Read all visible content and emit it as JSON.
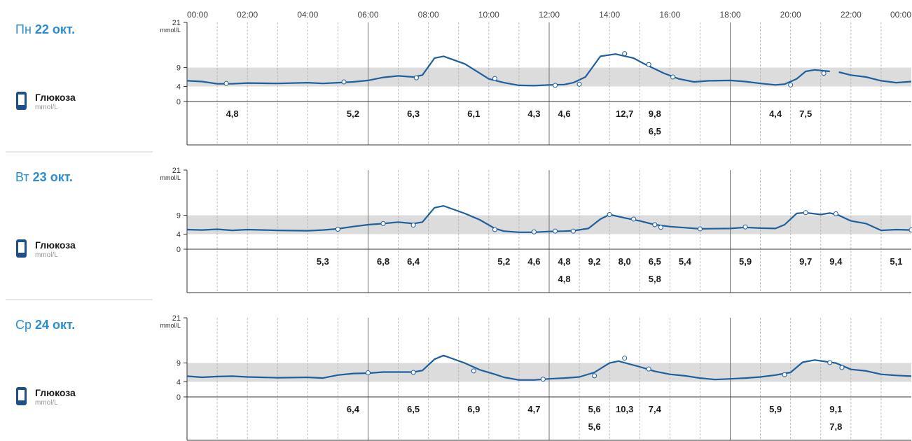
{
  "colors": {
    "accent": "#2b8ccf",
    "line": "#1f5f9e",
    "target_band": "#dcdcdc",
    "grid": "#b0b0b0"
  },
  "time_labels": [
    "00:00",
    "02:00",
    "04:00",
    "06:00",
    "08:00",
    "10:00",
    "12:00",
    "14:00",
    "16:00",
    "18:00",
    "20:00",
    "22:00",
    "00:00"
  ],
  "metric": {
    "name": "Глюкоза",
    "unit": "mmol/L",
    "icon": "phone-device-icon"
  },
  "chart_data": [
    {
      "type": "line",
      "day_prefix": "Пн",
      "day_bold": "22 окт.",
      "xlabel": "",
      "ylabel": "mmol/L",
      "yticks": [
        0,
        4,
        9,
        21
      ],
      "ylim": [
        0,
        21
      ],
      "xlim": [
        0,
        24
      ],
      "target_range": [
        4,
        9
      ],
      "series": [
        {
          "values": [
            [
              0,
              5.5
            ],
            [
              0.5,
              5.3
            ],
            [
              1,
              4.7
            ],
            [
              1.5,
              4.7
            ],
            [
              2,
              4.9
            ],
            [
              3,
              4.8
            ],
            [
              4,
              5.0
            ],
            [
              4.5,
              4.8
            ],
            [
              5,
              5.0
            ],
            [
              5.5,
              5.2
            ],
            [
              6,
              5.6
            ],
            [
              6.5,
              6.4
            ],
            [
              7,
              6.8
            ],
            [
              7.5,
              6.5
            ],
            [
              7.8,
              7.0
            ],
            [
              8.2,
              11.5
            ],
            [
              8.5,
              12.0
            ],
            [
              9.2,
              10.0
            ],
            [
              9.7,
              7.5
            ],
            [
              10,
              6.0
            ],
            [
              10.5,
              5.0
            ],
            [
              11,
              4.3
            ],
            [
              11.5,
              4.2
            ],
            [
              12,
              4.4
            ],
            [
              12.5,
              4.5
            ],
            [
              12.8,
              5.0
            ],
            [
              13.2,
              6.5
            ],
            [
              13.7,
              12.0
            ],
            [
              14.2,
              12.6
            ],
            [
              14.8,
              11.5
            ],
            [
              15.2,
              9.8
            ],
            [
              15.8,
              7.5
            ],
            [
              16.3,
              6.0
            ],
            [
              16.8,
              5.2
            ],
            [
              17.3,
              5.5
            ],
            [
              18,
              5.6
            ],
            [
              18.5,
              5.3
            ],
            [
              19,
              4.8
            ],
            [
              19.5,
              4.4
            ],
            [
              19.8,
              4.6
            ],
            [
              20.2,
              6.0
            ],
            [
              20.5,
              8.0
            ],
            [
              20.8,
              8.4
            ],
            [
              21.3,
              8.0
            ],
            null,
            [
              21.6,
              7.8
            ],
            [
              22,
              7.0
            ],
            [
              22.5,
              6.5
            ],
            [
              23,
              5.5
            ],
            [
              23.5,
              5.0
            ],
            [
              24,
              5.3
            ]
          ]
        }
      ],
      "markers": [
        [
          1.3,
          4.8
        ],
        [
          5.2,
          5.2
        ],
        [
          7.6,
          6.3
        ],
        [
          10.2,
          6.1
        ],
        [
          12.2,
          4.3
        ],
        [
          13,
          4.6
        ],
        [
          14.5,
          12.7
        ],
        [
          15.3,
          9.8
        ],
        [
          16.1,
          6.5
        ],
        [
          20,
          4.4
        ],
        [
          21.1,
          7.5
        ]
      ],
      "readings": [
        {
          "x": 1.5,
          "row": 0,
          "label": "4,8"
        },
        {
          "x": 5.5,
          "row": 0,
          "label": "5,2"
        },
        {
          "x": 7.5,
          "row": 0,
          "label": "6,3"
        },
        {
          "x": 9.5,
          "row": 0,
          "label": "6,1"
        },
        {
          "x": 11.5,
          "row": 0,
          "label": "4,3"
        },
        {
          "x": 12.5,
          "row": 0,
          "label": "4,6"
        },
        {
          "x": 14.5,
          "row": 0,
          "label": "12,7"
        },
        {
          "x": 15.5,
          "row": 0,
          "label": "9,8"
        },
        {
          "x": 15.5,
          "row": 1,
          "label": "6,5"
        },
        {
          "x": 19.5,
          "row": 0,
          "label": "4,4"
        },
        {
          "x": 20.5,
          "row": 0,
          "label": "7,5"
        }
      ]
    },
    {
      "type": "line",
      "day_prefix": "Вт",
      "day_bold": "23 окт.",
      "xlabel": "",
      "ylabel": "mmol/L",
      "yticks": [
        0,
        4,
        9,
        21
      ],
      "ylim": [
        0,
        21
      ],
      "xlim": [
        0,
        24
      ],
      "target_range": [
        4,
        9
      ],
      "series": [
        {
          "values": [
            [
              0,
              5.2
            ],
            [
              0.5,
              5.1
            ],
            [
              1,
              5.3
            ],
            [
              1.5,
              5.0
            ],
            [
              2,
              5.2
            ],
            [
              3,
              5.0
            ],
            [
              4,
              4.9
            ],
            [
              4.5,
              5.1
            ],
            [
              5,
              5.4
            ],
            [
              5.5,
              6.0
            ],
            [
              6,
              6.5
            ],
            [
              6.5,
              6.8
            ],
            [
              7,
              7.2
            ],
            [
              7.5,
              6.8
            ],
            [
              7.8,
              7.2
            ],
            [
              8.2,
              11.0
            ],
            [
              8.5,
              11.5
            ],
            [
              9.2,
              9.5
            ],
            [
              9.7,
              7.8
            ],
            [
              10.2,
              5.5
            ],
            [
              10.5,
              4.8
            ],
            [
              11,
              4.5
            ],
            [
              11.5,
              4.5
            ],
            [
              12,
              4.7
            ],
            [
              12.5,
              4.8
            ],
            [
              12.8,
              4.9
            ],
            [
              13.3,
              5.5
            ],
            [
              13.7,
              8.0
            ],
            [
              14,
              9.2
            ],
            [
              14.5,
              8.3
            ],
            [
              15,
              7.5
            ],
            [
              15.5,
              6.5
            ],
            [
              16,
              6.0
            ],
            [
              16.5,
              5.7
            ],
            [
              17,
              5.4
            ],
            [
              18,
              5.5
            ],
            [
              18.5,
              5.8
            ],
            [
              19,
              5.6
            ],
            [
              19.5,
              5.5
            ],
            [
              19.8,
              6.5
            ],
            [
              20.2,
              9.5
            ],
            [
              20.5,
              9.7
            ],
            [
              21,
              9.2
            ],
            [
              21.3,
              9.6
            ],
            [
              21.6,
              9.0
            ],
            [
              22,
              7.5
            ],
            [
              22.5,
              6.8
            ],
            [
              23,
              5.0
            ],
            [
              23.5,
              5.2
            ],
            [
              24,
              5.1
            ]
          ]
        }
      ],
      "markers": [
        [
          5,
          5.3
        ],
        [
          6.5,
          6.8
        ],
        [
          7.5,
          6.4
        ],
        [
          10.2,
          5.2
        ],
        [
          11.5,
          4.6
        ],
        [
          12.2,
          4.8
        ],
        [
          12.8,
          4.8
        ],
        [
          14,
          9.2
        ],
        [
          14.8,
          8.0
        ],
        [
          15.5,
          6.5
        ],
        [
          15.7,
          5.8
        ],
        [
          17,
          5.4
        ],
        [
          18.5,
          5.9
        ],
        [
          20.5,
          9.7
        ],
        [
          21.5,
          9.4
        ],
        [
          24,
          5.1
        ]
      ],
      "readings": [
        {
          "x": 4.5,
          "row": 0,
          "label": "5,3"
        },
        {
          "x": 6.5,
          "row": 0,
          "label": "6,8"
        },
        {
          "x": 7.5,
          "row": 0,
          "label": "6,4"
        },
        {
          "x": 10.5,
          "row": 0,
          "label": "5,2"
        },
        {
          "x": 11.5,
          "row": 0,
          "label": "4,6"
        },
        {
          "x": 12.5,
          "row": 0,
          "label": "4,8"
        },
        {
          "x": 12.5,
          "row": 1,
          "label": "4,8"
        },
        {
          "x": 13.5,
          "row": 0,
          "label": "9,2"
        },
        {
          "x": 14.5,
          "row": 0,
          "label": "8,0"
        },
        {
          "x": 15.5,
          "row": 0,
          "label": "6,5"
        },
        {
          "x": 15.5,
          "row": 1,
          "label": "5,8"
        },
        {
          "x": 16.5,
          "row": 0,
          "label": "5,4"
        },
        {
          "x": 18.5,
          "row": 0,
          "label": "5,9"
        },
        {
          "x": 20.5,
          "row": 0,
          "label": "9,7"
        },
        {
          "x": 21.5,
          "row": 0,
          "label": "9,4"
        },
        {
          "x": 23.5,
          "row": 0,
          "label": "5,1"
        }
      ]
    },
    {
      "type": "line",
      "day_prefix": "Ср",
      "day_bold": "24 окт.",
      "xlabel": "",
      "ylabel": "mmol/L",
      "yticks": [
        0,
        4,
        9,
        21
      ],
      "ylim": [
        0,
        21
      ],
      "xlim": [
        0,
        24
      ],
      "target_range": [
        4,
        9
      ],
      "series": [
        {
          "values": [
            [
              0,
              5.5
            ],
            [
              0.5,
              5.2
            ],
            [
              1,
              5.4
            ],
            [
              1.5,
              5.5
            ],
            [
              2,
              5.3
            ],
            [
              3,
              5.1
            ],
            [
              4,
              5.2
            ],
            [
              4.5,
              5.0
            ],
            [
              5,
              5.8
            ],
            [
              5.5,
              6.2
            ],
            [
              6,
              6.3
            ],
            [
              6.5,
              6.6
            ],
            [
              7,
              6.6
            ],
            [
              7.5,
              6.6
            ],
            [
              7.8,
              7.0
            ],
            [
              8.2,
              10.0
            ],
            [
              8.5,
              11.0
            ],
            [
              9.2,
              9.0
            ],
            [
              9.7,
              7.2
            ],
            [
              10.2,
              6.0
            ],
            [
              10.5,
              5.2
            ],
            [
              11,
              4.5
            ],
            [
              11.5,
              4.5
            ],
            [
              12,
              4.8
            ],
            [
              12.5,
              5.0
            ],
            [
              13,
              5.3
            ],
            [
              13.5,
              6.5
            ],
            [
              14,
              9.0
            ],
            [
              14.3,
              9.5
            ],
            [
              15,
              8.0
            ],
            [
              15.5,
              6.8
            ],
            [
              16,
              6.0
            ],
            [
              16.5,
              5.6
            ],
            [
              17,
              5.0
            ],
            [
              17.5,
              4.6
            ],
            [
              18,
              4.8
            ],
            [
              18.5,
              5.0
            ],
            [
              19,
              5.3
            ],
            [
              19.5,
              5.8
            ],
            [
              20,
              6.5
            ],
            [
              20.4,
              9.2
            ],
            [
              20.8,
              9.8
            ],
            [
              21.5,
              9.0
            ],
            [
              22,
              7.3
            ],
            [
              22.5,
              6.9
            ],
            [
              23,
              6.0
            ],
            [
              23.5,
              5.7
            ],
            [
              24,
              5.5
            ]
          ]
        }
      ],
      "markers": [
        [
          6,
          6.4
        ],
        [
          7.5,
          6.5
        ],
        [
          9.5,
          6.9
        ],
        [
          11.8,
          4.7
        ],
        [
          13.5,
          5.6
        ],
        [
          14.5,
          10.3
        ],
        [
          15.3,
          7.4
        ],
        [
          19.8,
          5.9
        ],
        [
          21.3,
          9.1
        ],
        [
          21.7,
          7.8
        ]
      ],
      "readings": [
        {
          "x": 5.5,
          "row": 0,
          "label": "6,4"
        },
        {
          "x": 7.5,
          "row": 0,
          "label": "6,5"
        },
        {
          "x": 9.5,
          "row": 0,
          "label": "6,9"
        },
        {
          "x": 11.5,
          "row": 0,
          "label": "4,7"
        },
        {
          "x": 13.5,
          "row": 0,
          "label": "5,6"
        },
        {
          "x": 13.5,
          "row": 1,
          "label": "5,6"
        },
        {
          "x": 14.5,
          "row": 0,
          "label": "10,3"
        },
        {
          "x": 15.5,
          "row": 0,
          "label": "7,4"
        },
        {
          "x": 19.5,
          "row": 0,
          "label": "5,9"
        },
        {
          "x": 21.5,
          "row": 0,
          "label": "9,1"
        },
        {
          "x": 21.5,
          "row": 1,
          "label": "7,8"
        }
      ]
    }
  ]
}
